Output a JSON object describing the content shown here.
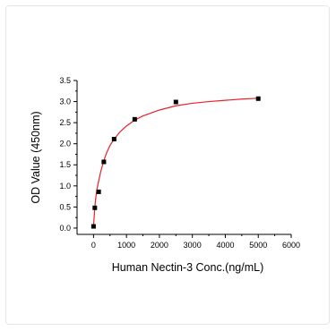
{
  "chart_data": {
    "type": "scatter",
    "title": "",
    "xlabel": "Human Nectin-3 Conc.(ng/mL)",
    "ylabel": "OD Value (450nm)",
    "xlim": [
      -500,
      6000
    ],
    "ylim": [
      -0.15,
      3.5
    ],
    "x_ticks": [
      0,
      1000,
      2000,
      3000,
      4000,
      5000,
      6000
    ],
    "y_ticks": [
      0.0,
      0.5,
      1.0,
      1.5,
      2.0,
      2.5,
      3.0,
      3.5
    ],
    "x_tick_labels": [
      "0",
      "1000",
      "2000",
      "3000",
      "4000",
      "5000",
      "6000"
    ],
    "y_tick_labels": [
      "0.0",
      "0.5",
      "1.0",
      "1.5",
      "2.0",
      "2.5",
      "3.0",
      "3.5"
    ],
    "grid": false,
    "series": [
      {
        "marker": "square",
        "color": "#000000",
        "x": [
          0,
          39,
          156,
          313,
          625,
          1250,
          2500,
          5000
        ],
        "y": [
          0.04,
          0.48,
          0.86,
          1.57,
          2.11,
          2.58,
          2.99,
          3.07
        ]
      }
    ],
    "fit_curve": {
      "color": "#e8212a",
      "x": [
        0,
        20,
        39,
        60,
        100,
        156,
        220,
        313,
        400,
        500,
        625,
        800,
        1000,
        1250,
        1500,
        2000,
        2500,
        3000,
        3500,
        4000,
        4500,
        5000
      ],
      "y": [
        0.04,
        0.27,
        0.48,
        0.66,
        0.9,
        1.12,
        1.34,
        1.6,
        1.79,
        1.96,
        2.11,
        2.28,
        2.42,
        2.56,
        2.66,
        2.8,
        2.9,
        2.96,
        3.0,
        3.03,
        3.06,
        3.08
      ]
    }
  }
}
